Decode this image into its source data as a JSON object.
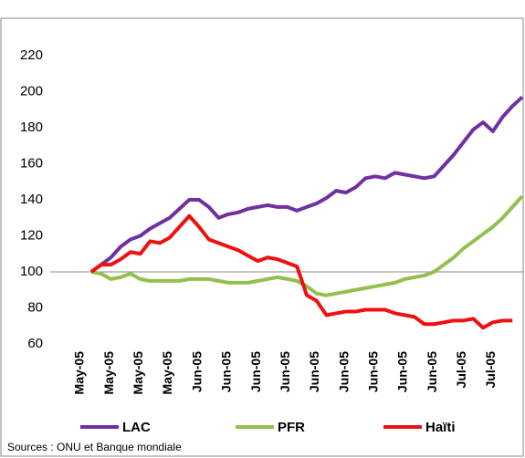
{
  "chart_data": {
    "type": "line",
    "categories": [
      "May-05",
      null,
      null,
      "May-05",
      null,
      null,
      "May-05",
      null,
      null,
      "May-05",
      null,
      null,
      "Jun-05",
      null,
      null,
      "Jun-05",
      null,
      null,
      "Jun-05",
      null,
      null,
      "Jun-05",
      null,
      null,
      "Jun-05",
      null,
      null,
      "Jun-05",
      null,
      null,
      "Jun-05",
      null,
      null,
      "Jun-05",
      null,
      null,
      "Jun-05",
      null,
      null,
      "Jul-05",
      null,
      null,
      "Jul-05",
      null,
      null
    ],
    "series": [
      {
        "name": "LAC",
        "color": "#7030a0",
        "values": [
          100,
          104,
          108,
          114,
          118,
          120,
          124,
          127,
          130,
          135,
          140,
          140,
          136,
          130,
          132,
          133,
          135,
          136,
          137,
          136,
          136,
          134,
          136,
          138,
          141,
          145,
          144,
          147,
          152,
          153,
          152,
          155,
          154,
          153,
          152,
          153,
          159,
          165,
          172,
          179,
          183,
          178,
          186,
          192,
          197
        ]
      },
      {
        "name": "PFR",
        "color": "#92c050",
        "values": [
          100,
          99,
          96,
          97,
          99,
          96,
          95,
          95,
          95,
          95,
          96,
          96,
          96,
          95,
          94,
          94,
          94,
          95,
          96,
          97,
          96,
          95,
          92,
          88,
          87,
          88,
          89,
          90,
          91,
          92,
          93,
          94,
          96,
          97,
          98,
          100,
          104,
          108,
          113,
          117,
          121,
          125,
          130,
          136,
          142
        ]
      },
      {
        "name": "Haïti",
        "color": "#ee1111",
        "values": [
          100,
          104,
          104,
          107,
          111,
          110,
          117,
          116,
          119,
          125,
          131,
          125,
          118,
          116,
          114,
          112,
          109,
          106,
          108,
          107,
          105,
          103,
          87,
          84,
          76,
          77,
          78,
          78,
          79,
          79,
          79,
          77,
          76,
          75,
          71,
          71,
          72,
          73,
          73,
          74,
          69,
          72,
          73,
          73,
          null
        ]
      }
    ],
    "ylim": [
      60,
      220
    ],
    "yticks": [
      60,
      80,
      100,
      120,
      140,
      160,
      180,
      200,
      220
    ],
    "reference_line": 100,
    "source": "Sources : ONU et Banque mondiale"
  }
}
